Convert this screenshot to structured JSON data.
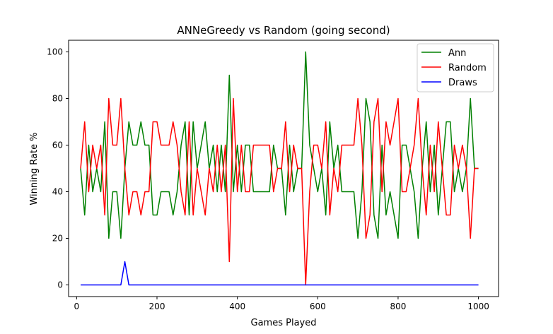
{
  "chart_data": {
    "type": "line",
    "title": "ANNeGreedy vs Random (going second)",
    "xlabel": "Games Played",
    "ylabel": "Winning Rate %",
    "xlim": [
      -20,
      1050
    ],
    "ylim": [
      -5,
      105
    ],
    "xticks": [
      0,
      200,
      400,
      600,
      800,
      1000
    ],
    "yticks": [
      0,
      20,
      40,
      60,
      80,
      100
    ],
    "grid": false,
    "legend_position": "top-right",
    "x": [
      10,
      20,
      30,
      40,
      50,
      60,
      70,
      80,
      90,
      100,
      110,
      120,
      130,
      140,
      150,
      160,
      170,
      180,
      190,
      200,
      210,
      220,
      230,
      240,
      250,
      260,
      270,
      280,
      290,
      300,
      310,
      320,
      330,
      340,
      350,
      360,
      370,
      380,
      390,
      400,
      410,
      420,
      430,
      440,
      450,
      460,
      470,
      480,
      490,
      500,
      510,
      520,
      530,
      540,
      550,
      560,
      570,
      580,
      590,
      600,
      610,
      620,
      630,
      640,
      650,
      660,
      670,
      680,
      690,
      700,
      710,
      720,
      730,
      740,
      750,
      760,
      770,
      780,
      790,
      800,
      810,
      820,
      830,
      840,
      850,
      860,
      870,
      880,
      890,
      900,
      910,
      920,
      930,
      940,
      950,
      960,
      970,
      980,
      990,
      1000
    ],
    "series": [
      {
        "name": "Ann",
        "color": "#008000",
        "values": [
          50,
          30,
          60,
          40,
          50,
          40,
          70,
          20,
          40,
          40,
          20,
          50,
          70,
          60,
          60,
          70,
          60,
          60,
          30,
          30,
          40,
          40,
          40,
          30,
          40,
          60,
          70,
          30,
          70,
          50,
          60,
          70,
          50,
          60,
          40,
          60,
          40,
          90,
          40,
          60,
          40,
          60,
          60,
          40,
          40,
          40,
          40,
          40,
          60,
          50,
          50,
          30,
          60,
          40,
          50,
          50,
          100,
          60,
          50,
          40,
          50,
          30,
          70,
          50,
          60,
          40,
          40,
          40,
          40,
          20,
          40,
          80,
          70,
          30,
          20,
          60,
          30,
          40,
          30,
          20,
          60,
          60,
          50,
          40,
          20,
          50,
          70,
          40,
          60,
          30,
          50,
          70,
          70,
          40,
          50,
          40,
          50,
          80,
          50,
          50
        ]
      },
      {
        "name": "Random",
        "color": "#ff0000",
        "values": [
          50,
          70,
          40,
          60,
          50,
          60,
          30,
          80,
          60,
          60,
          80,
          50,
          30,
          40,
          40,
          30,
          40,
          40,
          70,
          70,
          60,
          60,
          60,
          70,
          60,
          40,
          30,
          70,
          30,
          50,
          40,
          30,
          50,
          40,
          60,
          40,
          60,
          10,
          80,
          40,
          60,
          40,
          40,
          60,
          60,
          60,
          60,
          60,
          40,
          50,
          50,
          70,
          40,
          60,
          50,
          50,
          0,
          40,
          60,
          60,
          50,
          70,
          30,
          50,
          40,
          60,
          60,
          60,
          60,
          80,
          60,
          20,
          30,
          70,
          80,
          40,
          70,
          60,
          70,
          80,
          40,
          40,
          50,
          60,
          80,
          50,
          30,
          60,
          40,
          70,
          50,
          30,
          30,
          60,
          50,
          60,
          50,
          20,
          50,
          50
        ]
      },
      {
        "name": "Draws",
        "color": "#0000ff",
        "values": [
          0,
          0,
          0,
          0,
          0,
          0,
          0,
          0,
          0,
          0,
          0,
          10,
          0,
          0,
          0,
          0,
          0,
          0,
          0,
          0,
          0,
          0,
          0,
          0,
          0,
          0,
          0,
          0,
          0,
          0,
          0,
          0,
          0,
          0,
          0,
          0,
          0,
          0,
          0,
          0,
          0,
          0,
          0,
          0,
          0,
          0,
          0,
          0,
          0,
          0,
          0,
          0,
          0,
          0,
          0,
          0,
          0,
          0,
          0,
          0,
          0,
          0,
          0,
          0,
          0,
          0,
          0,
          0,
          0,
          0,
          0,
          0,
          0,
          0,
          0,
          0,
          0,
          0,
          0,
          0,
          0,
          0,
          0,
          0,
          0,
          0,
          0,
          0,
          0,
          0,
          0,
          0,
          0,
          0,
          0,
          0,
          0,
          0,
          0,
          0
        ]
      }
    ]
  }
}
